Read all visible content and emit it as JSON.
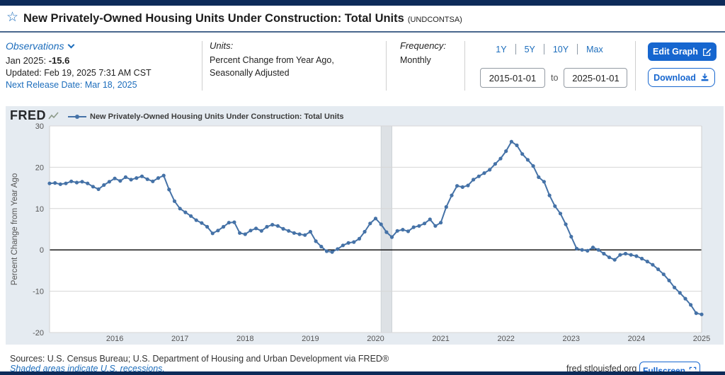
{
  "header": {
    "title": "New Privately-Owned Housing Units Under Construction: Total Units",
    "series_id": "(UNDCONTSA)"
  },
  "observations": {
    "label": "Observations",
    "latest_period": "Jan 2025: ",
    "latest_value": "-15.6",
    "updated": "Updated: Feb 19, 2025 7:31 AM CST",
    "next_release": "Next Release Date: Mar 18, 2025"
  },
  "units": {
    "label": "Units:",
    "line1": "Percent Change from Year Ago,",
    "line2": "Seasonally Adjusted"
  },
  "frequency": {
    "label": "Frequency:",
    "value": "Monthly"
  },
  "range": {
    "presets": [
      "1Y",
      "5Y",
      "10Y",
      "Max"
    ],
    "start": "2015-01-01",
    "to_label": "to",
    "end": "2025-01-01"
  },
  "actions": {
    "edit_graph": "Edit Graph",
    "download": "Download",
    "fullscreen": "Fullscreen"
  },
  "brand": {
    "logo": "FRED"
  },
  "footer": {
    "sources": "Sources: U.S. Census Bureau; U.S. Department of Housing and Urban Development via FRED®",
    "shaded_note": "Shaded areas indicate U.S. recessions.",
    "site": "fred.stlouisfed.org"
  },
  "chart_data": {
    "type": "line",
    "series_name": "New Privately-Owned Housing Units Under Construction: Total Units",
    "ylabel": "Percent Change from Year Ago",
    "ylim": [
      -20,
      30
    ],
    "yticks": [
      30,
      20,
      10,
      0,
      -10,
      -20
    ],
    "xticks": [
      "2016",
      "2017",
      "2018",
      "2019",
      "2020",
      "2021",
      "2022",
      "2023",
      "2024",
      "2025"
    ],
    "x_start": "2015-01",
    "x_end": "2025-01",
    "frequency": "Monthly",
    "grid": true,
    "legend_position": "top",
    "line_color": "#4572a7",
    "recession_band": {
      "start": "2020-02",
      "end": "2020-04"
    },
    "values": [
      16.1,
      16.2,
      15.9,
      16.1,
      16.6,
      16.3,
      16.5,
      16.1,
      15.3,
      14.7,
      15.7,
      16.5,
      17.3,
      16.7,
      17.6,
      17.0,
      17.4,
      17.8,
      17.1,
      16.6,
      17.4,
      18.0,
      14.6,
      11.8,
      10.0,
      9.1,
      8.2,
      7.2,
      6.5,
      5.6,
      4.0,
      4.7,
      5.6,
      6.6,
      6.7,
      4.1,
      3.8,
      4.7,
      5.2,
      4.6,
      5.6,
      6.1,
      5.8,
      5.1,
      4.6,
      4.1,
      3.8,
      3.6,
      4.4,
      2.1,
      0.8,
      -0.3,
      -0.5,
      0.2,
      1.1,
      1.7,
      1.9,
      2.7,
      4.4,
      6.4,
      7.6,
      6.2,
      4.3,
      3.1,
      4.6,
      4.9,
      4.5,
      5.5,
      5.8,
      6.4,
      7.4,
      5.8,
      6.6,
      10.4,
      13.2,
      15.5,
      15.2,
      15.6,
      17.0,
      17.8,
      18.6,
      19.4,
      20.8,
      22.1,
      23.9,
      26.2,
      25.3,
      23.2,
      21.8,
      20.3,
      17.6,
      16.5,
      13.2,
      10.6,
      8.8,
      6.2,
      3.2,
      0.3,
      0.0,
      -0.2,
      0.6,
      0.0,
      -0.9,
      -1.8,
      -2.4,
      -1.2,
      -0.9,
      -1.2,
      -1.5,
      -2.1,
      -2.8,
      -3.6,
      -4.7,
      -5.9,
      -7.4,
      -9.1,
      -10.4,
      -11.8,
      -13.3,
      -15.3,
      -15.6
    ]
  }
}
